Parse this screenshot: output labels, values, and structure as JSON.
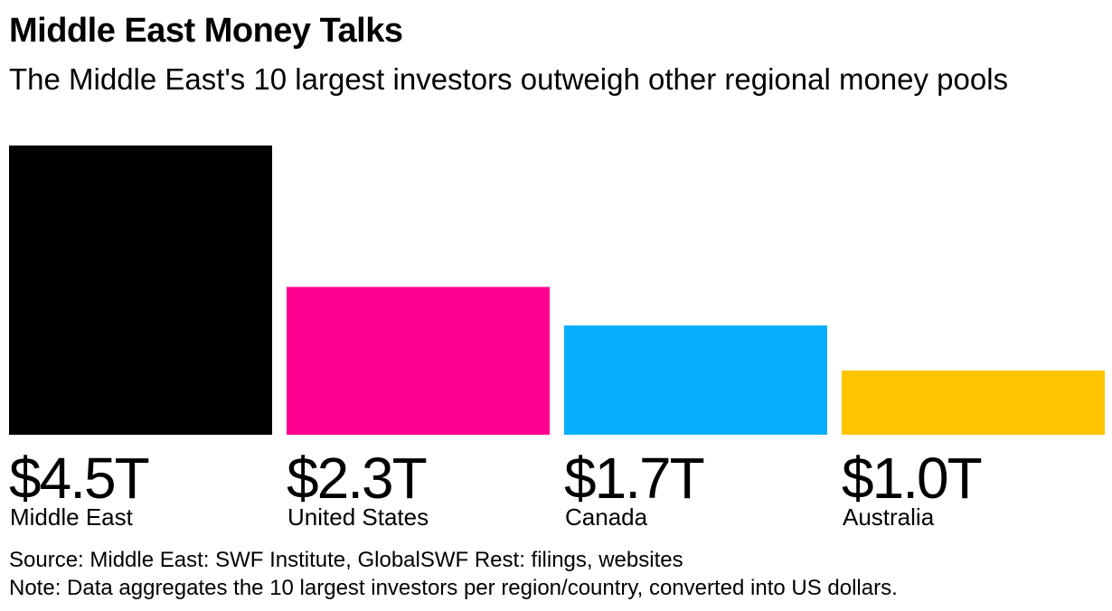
{
  "title": "Middle East Money Talks",
  "subtitle": "The Middle East's 10 largest investors outweigh other regional money pools",
  "chart_data": {
    "type": "bar",
    "categories": [
      "Middle East",
      "United States",
      "Canada",
      "Australia"
    ],
    "values": [
      4.5,
      2.3,
      1.7,
      1.0
    ],
    "unit": "trillion US dollars",
    "value_labels": [
      "$4.5T",
      "$2.3T",
      "$1.7T",
      "$1.0T"
    ],
    "colors": [
      "#000000",
      "#ff0090",
      "#07aefc",
      "#ffc400"
    ],
    "ylim": [
      0,
      4.5
    ],
    "grid": false,
    "legend": "none",
    "xlabel": "",
    "ylabel": ""
  },
  "footer": {
    "source": "Source: Middle East: SWF Institute, GlobalSWF Rest: filings, websites",
    "note": "Note: Data aggregates the 10 largest investors per region/country, converted into US dollars."
  }
}
